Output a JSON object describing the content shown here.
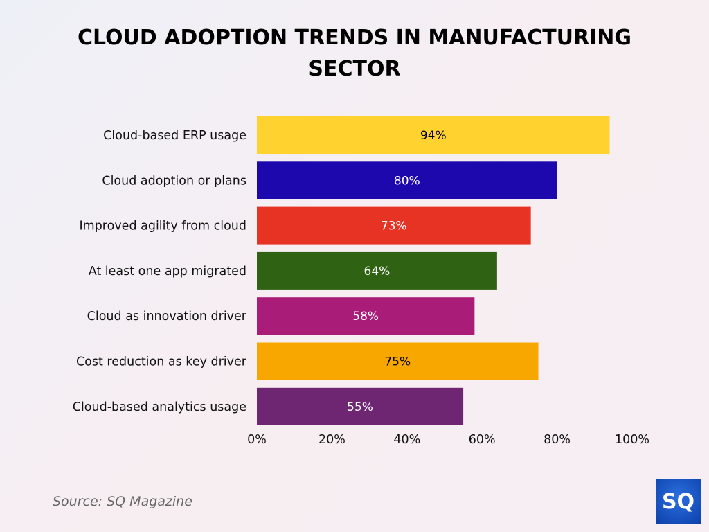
{
  "chart_data": {
    "type": "bar",
    "orientation": "horizontal",
    "title": "CLOUD ADOPTION TRENDS IN MANUFACTURING SECTOR",
    "categories": [
      "Cloud-based ERP usage",
      "Cloud adoption or plans",
      "Improved agility from cloud",
      "At least one app migrated",
      "Cloud as innovation driver",
      "Cost reduction as key driver",
      "Cloud-based analytics usage"
    ],
    "values": [
      94,
      80,
      73,
      64,
      58,
      75,
      55
    ],
    "data_labels": [
      "94%",
      "80%",
      "73%",
      "64%",
      "58%",
      "75%",
      "55%"
    ],
    "colors": [
      "#FFD22F",
      "#1D08AE",
      "#E73324",
      "#2F6212",
      "#A91D79",
      "#F8A600",
      "#6E2672"
    ],
    "label_colors": [
      "#000000",
      "#ffffff",
      "#ffffff",
      "#ffffff",
      "#ffffff",
      "#000000",
      "#ffffff"
    ],
    "xlim": [
      0,
      100
    ],
    "xticks": [
      "0%",
      "20%",
      "40%",
      "60%",
      "80%",
      "100%"
    ],
    "grid": false,
    "xlabel": "",
    "ylabel": ""
  },
  "source": "Source: SQ Magazine",
  "logo": "SQ"
}
